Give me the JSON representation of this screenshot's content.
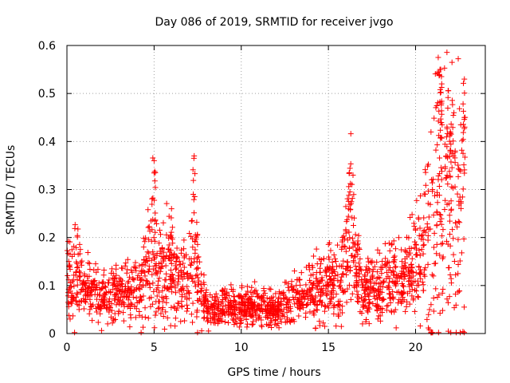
{
  "chart_data": {
    "type": "scatter",
    "title": "Day 086 of 2019, SRMTID for receiver jvgo",
    "xlabel": "GPS time / hours",
    "ylabel": "SRMTID / TECUs",
    "xlim": [
      0,
      24
    ],
    "ylim": [
      0,
      0.6
    ],
    "xticks": [
      0,
      5,
      10,
      15,
      20
    ],
    "xtick_labels": [
      "0",
      "5",
      "10",
      "15",
      "20"
    ],
    "yticks": [
      0,
      0.1,
      0.2,
      0.3,
      0.4,
      0.5,
      0.6
    ],
    "ytick_labels": [
      "0",
      "0.1",
      "0.2",
      "0.3",
      "0.4",
      "0.5",
      "0.6"
    ],
    "grid": true,
    "marker": "+",
    "color": "#ff0000",
    "x_range_hours": [
      0,
      22.8
    ],
    "series": [
      {
        "name": "SRMTID",
        "profile": [
          {
            "x": 0.0,
            "y": 0.1
          },
          {
            "x": 0.5,
            "y": 0.12
          },
          {
            "x": 1.0,
            "y": 0.09
          },
          {
            "x": 2.0,
            "y": 0.08
          },
          {
            "x": 3.0,
            "y": 0.085
          },
          {
            "x": 4.0,
            "y": 0.08
          },
          {
            "x": 4.5,
            "y": 0.12
          },
          {
            "x": 4.9,
            "y": 0.2
          },
          {
            "x": 5.3,
            "y": 0.14
          },
          {
            "x": 6.0,
            "y": 0.13
          },
          {
            "x": 6.5,
            "y": 0.1
          },
          {
            "x": 7.0,
            "y": 0.1
          },
          {
            "x": 7.3,
            "y": 0.19
          },
          {
            "x": 7.6,
            "y": 0.1
          },
          {
            "x": 8.0,
            "y": 0.05
          },
          {
            "x": 9.0,
            "y": 0.06
          },
          {
            "x": 10.0,
            "y": 0.055
          },
          {
            "x": 11.0,
            "y": 0.06
          },
          {
            "x": 12.0,
            "y": 0.05
          },
          {
            "x": 13.0,
            "y": 0.07
          },
          {
            "x": 14.0,
            "y": 0.09
          },
          {
            "x": 15.0,
            "y": 0.1
          },
          {
            "x": 15.5,
            "y": 0.11
          },
          {
            "x": 16.0,
            "y": 0.13
          },
          {
            "x": 16.3,
            "y": 0.22
          },
          {
            "x": 16.6,
            "y": 0.12
          },
          {
            "x": 17.0,
            "y": 0.08
          },
          {
            "x": 18.0,
            "y": 0.11
          },
          {
            "x": 19.0,
            "y": 0.11
          },
          {
            "x": 20.0,
            "y": 0.15
          },
          {
            "x": 20.5,
            "y": 0.17
          },
          {
            "x": 21.0,
            "y": 0.24
          },
          {
            "x": 21.5,
            "y": 0.3
          },
          {
            "x": 22.0,
            "y": 0.28
          },
          {
            "x": 22.5,
            "y": 0.25
          },
          {
            "x": 22.8,
            "y": 0.22
          }
        ],
        "peaks": [
          {
            "x": 5.0,
            "y": 0.36
          },
          {
            "x": 6.0,
            "y": 0.26
          },
          {
            "x": 7.3,
            "y": 0.37
          },
          {
            "x": 16.2,
            "y": 0.335
          },
          {
            "x": 21.3,
            "y": 0.575
          },
          {
            "x": 21.4,
            "y": 0.55
          },
          {
            "x": 21.5,
            "y": 0.52
          },
          {
            "x": 22.2,
            "y": 0.46
          },
          {
            "x": 22.8,
            "y": 0.53
          },
          {
            "x": 22.8,
            "y": 0.45
          },
          {
            "x": 21.8,
            "y": 0.43
          },
          {
            "x": 22.0,
            "y": 0.42
          }
        ]
      }
    ]
  }
}
